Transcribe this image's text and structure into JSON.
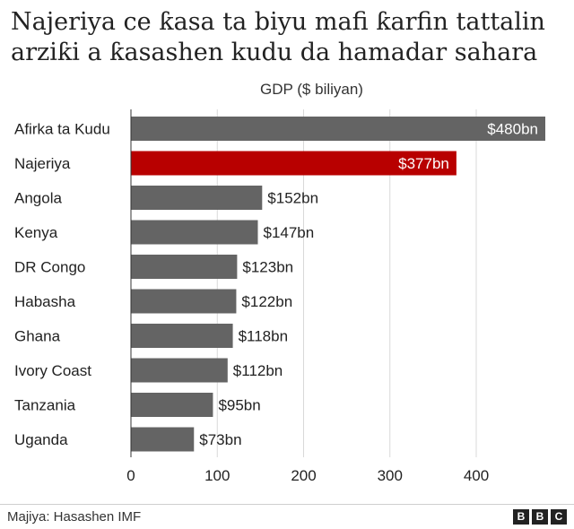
{
  "chart_data": {
    "type": "bar",
    "orientation": "horizontal",
    "title": "Najeriya ce ƙasa ta biyu mafi ƙarfin tattalin arziƙi a ƙasashen kudu da hamadar sahara",
    "ylabel": "GDP ($ biliyan)",
    "categories": [
      "Afirka ta Kudu",
      "Najeriya",
      "Angola",
      "Kenya",
      "DR Congo",
      "Habasha",
      "Ghana",
      "Ivory Coast",
      "Tanzania",
      "Uganda"
    ],
    "values": [
      480,
      377,
      152,
      147,
      123,
      122,
      118,
      112,
      95,
      73
    ],
    "data_labels": [
      "$480bn",
      "$377bn",
      "$152bn",
      "$147bn",
      "$123bn",
      "$122bn",
      "$118bn",
      "$112bn",
      "$95bn",
      "$73bn"
    ],
    "highlight_index": 1,
    "xlim": [
      0,
      480
    ],
    "xticks": [
      0,
      100,
      200,
      300,
      400
    ],
    "grid": true,
    "colors": {
      "default": "#646464",
      "highlight": "#b80000",
      "grid": "#d9d9d9"
    }
  },
  "footer": {
    "source": "Majiya: Hasashen IMF",
    "logo_letters": [
      "B",
      "B",
      "C"
    ]
  }
}
